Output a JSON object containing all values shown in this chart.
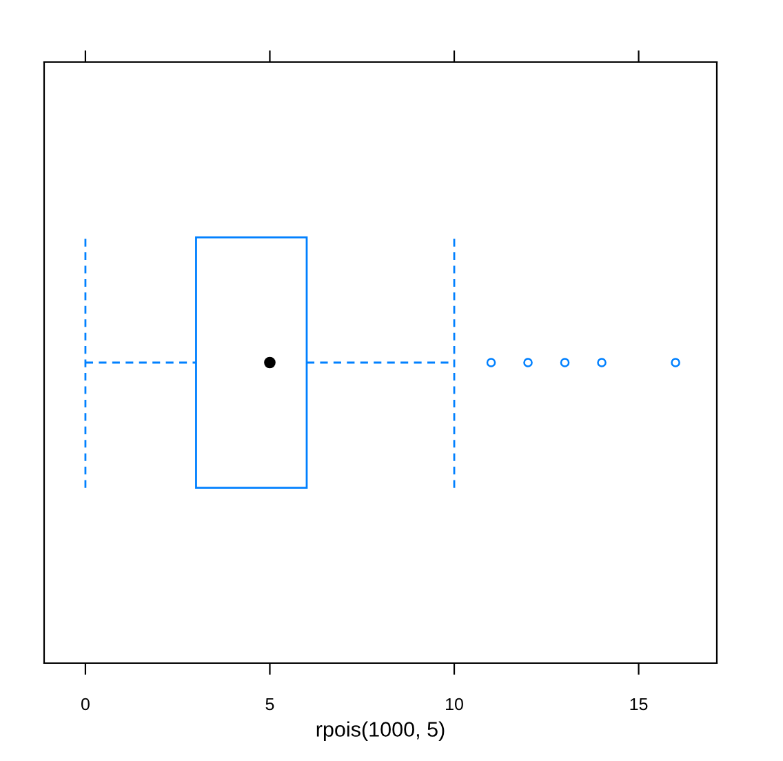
{
  "chart_data": {
    "type": "box",
    "orientation": "horizontal",
    "xlabel": "rpois(1000, 5)",
    "categories": [
      null
    ],
    "series": [
      {
        "color": "#0080ff",
        "boxes": [
          {
            "low": 0,
            "q1": 3,
            "median": 5,
            "q3": 6,
            "high": 10,
            "outliers": [
              11,
              12,
              13,
              14,
              16
            ]
          }
        ]
      }
    ],
    "xlim": [
      -1.12,
      17.12
    ],
    "xticks": [
      0,
      5,
      10,
      15
    ],
    "line_style": "dashed",
    "marker": "circle",
    "grid": false
  }
}
